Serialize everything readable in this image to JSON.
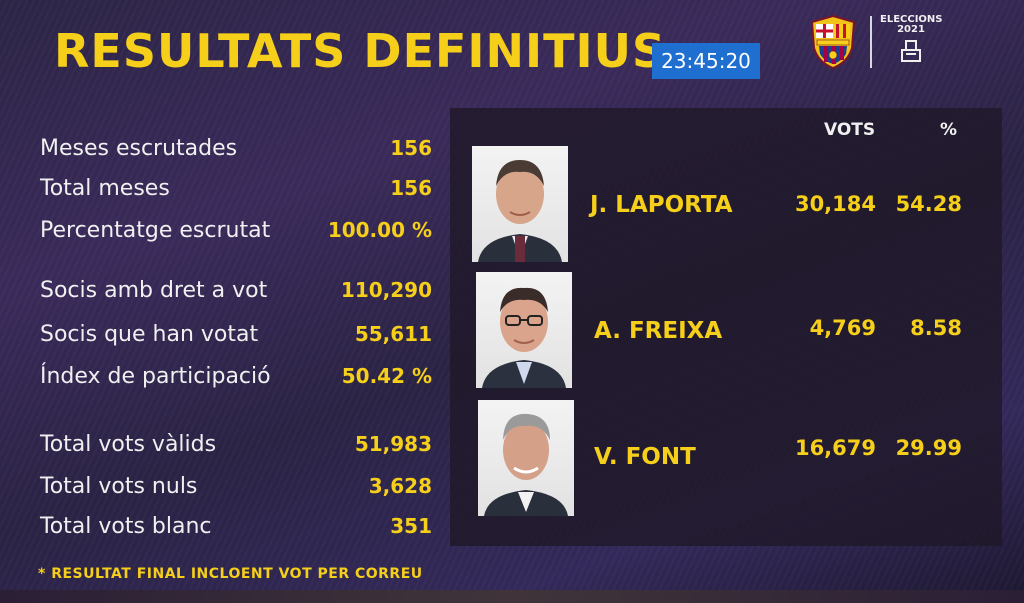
{
  "header": {
    "title": "RESULTATS DEFINITIUS",
    "clock": "23:45:20",
    "elections_line1": "ELECCIONS",
    "elections_line2": "2021"
  },
  "stats": [
    {
      "label": "Meses escrutades",
      "value": "156"
    },
    {
      "label": "Total meses",
      "value": "156"
    },
    {
      "label": "Percentatge escrutat",
      "value": "100.00 %"
    },
    {
      "label": "Socis amb dret a vot",
      "value": "110,290"
    },
    {
      "label": "Socis que han votat",
      "value": "55,611"
    },
    {
      "label": "Índex de participació",
      "value": "50.42 %"
    },
    {
      "label": "Total vots vàlids",
      "value": "51,983"
    },
    {
      "label": "Total vots nuls",
      "value": "3,628"
    },
    {
      "label": "Total vots blanc",
      "value": "351"
    }
  ],
  "results": {
    "votes_header": "VOTS",
    "pct_header": "%",
    "candidates": [
      {
        "name": "J. LAPORTA",
        "votes": "30,184",
        "pct": "54.28"
      },
      {
        "name": "A. FREIXA",
        "votes": "4,769",
        "pct": "8.58"
      },
      {
        "name": "V. FONT",
        "votes": "16,679",
        "pct": "29.99"
      }
    ]
  },
  "footnote": "* RESULTAT FINAL INCLOENT VOT PER CORREU",
  "colors": {
    "accent_yellow": "#f5cf1a",
    "clock_blue": "#1f6fd1",
    "panel_dark": "#201828",
    "background_purple": "#2c2546"
  }
}
